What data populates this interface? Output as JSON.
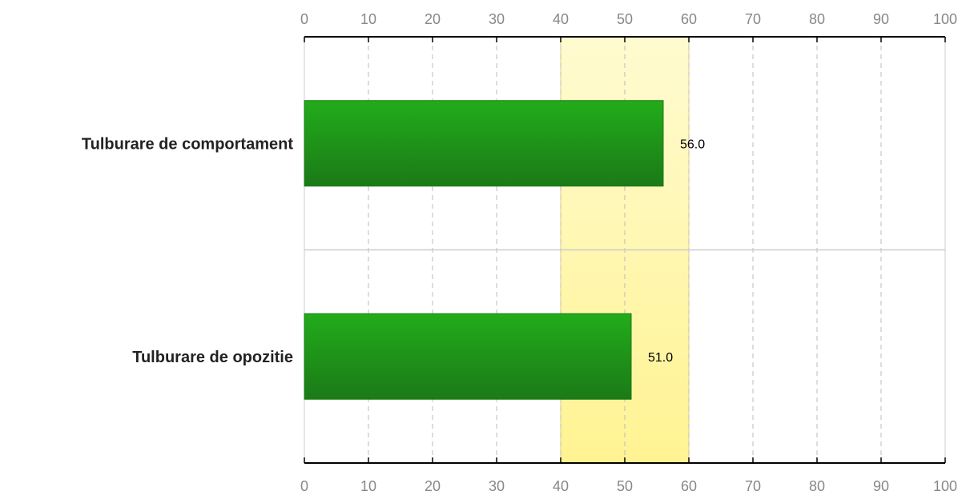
{
  "chart_data": {
    "type": "bar",
    "orientation": "horizontal",
    "categories": [
      "Tulburare de comportament",
      "Tulburare de opozitie"
    ],
    "values": [
      56.0,
      51.0
    ],
    "value_labels": [
      "56.0",
      "51.0"
    ],
    "xlim": [
      0,
      100
    ],
    "ticks": [
      0,
      10,
      20,
      30,
      40,
      50,
      60,
      70,
      80,
      90,
      100
    ],
    "tick_axes": [
      "top",
      "bottom"
    ],
    "reference_band": [
      40,
      60
    ],
    "grid": "vertical-dashed",
    "legend": "none",
    "title": "",
    "xlabel": "",
    "ylabel": ""
  },
  "colors": {
    "bar_top": "#22ac1a",
    "bar_bottom": "#1b7a18",
    "bar_stroke": "#187a14",
    "band_top": "#fffbd0",
    "band_bottom": "#fff392",
    "band_stroke": "#e4d26a",
    "grid": "#bbbbbb",
    "axis": "#000000",
    "separator": "#cccccc",
    "tick_text": "#888888",
    "category_text": "#222222"
  }
}
